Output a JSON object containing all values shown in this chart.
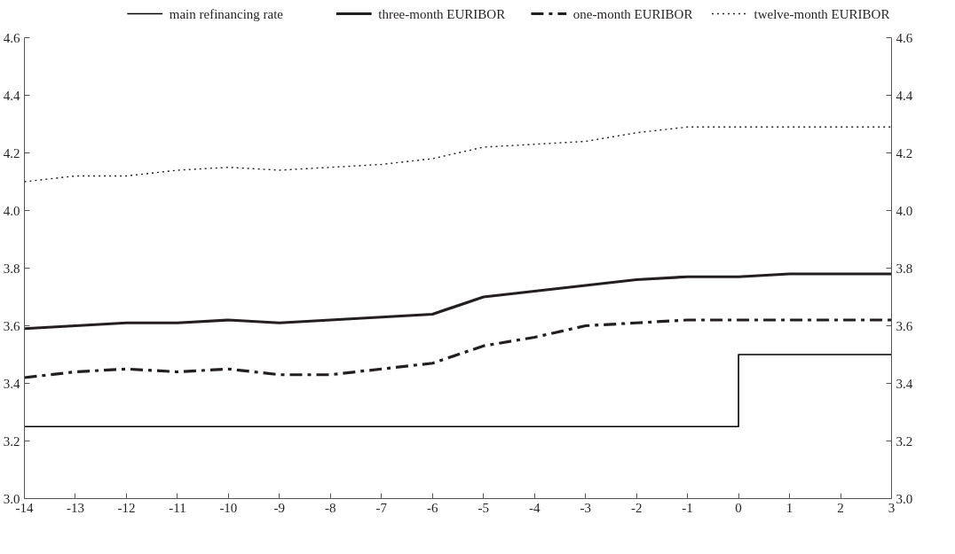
{
  "chart_data": {
    "type": "line",
    "x": [
      -14,
      -13,
      -12,
      -11,
      -10,
      -9,
      -8,
      -7,
      -6,
      -5,
      -4,
      -3,
      -2,
      -1,
      0,
      1,
      2,
      3
    ],
    "series": [
      {
        "name": "main refinancing rate",
        "type": "step",
        "color": "#000000",
        "line_style": "solid",
        "x": [
          -14,
          0,
          3
        ],
        "values": [
          3.25,
          3.5,
          3.5
        ]
      },
      {
        "name": "three-month EURIBOR",
        "color": "#231f20",
        "line_style": "solid",
        "values": [
          3.59,
          3.6,
          3.61,
          3.61,
          3.62,
          3.61,
          3.62,
          3.63,
          3.64,
          3.7,
          3.72,
          3.74,
          3.76,
          3.77,
          3.77,
          3.78,
          3.78,
          3.78
        ]
      },
      {
        "name": "one-month EURIBOR",
        "color": "#231f20",
        "line_style": "dashdot",
        "values": [
          3.42,
          3.44,
          3.45,
          3.44,
          3.45,
          3.43,
          3.43,
          3.45,
          3.47,
          3.53,
          3.56,
          3.6,
          3.61,
          3.62,
          3.62,
          3.62,
          3.62,
          3.62
        ]
      },
      {
        "name": "twelve-month EURIBOR",
        "color": "#231f20",
        "line_style": "dotted",
        "values": [
          4.1,
          4.12,
          4.12,
          4.14,
          4.15,
          4.14,
          4.15,
          4.16,
          4.18,
          4.22,
          4.23,
          4.24,
          4.27,
          4.29,
          4.29,
          4.29,
          4.29,
          4.29
        ]
      }
    ],
    "xlim": [
      -14,
      3
    ],
    "xticks": [
      -14,
      -13,
      -12,
      -11,
      -10,
      -9,
      -8,
      -7,
      -6,
      -5,
      -4,
      -3,
      -2,
      -1,
      0,
      1,
      2,
      3
    ],
    "ylim": [
      3.0,
      4.6
    ],
    "yticks": [
      {
        "value": 3.0,
        "label": "3.0"
      },
      {
        "value": 3.2,
        "label": "3.2"
      },
      {
        "value": 3.4,
        "label": "3.4"
      },
      {
        "value": 3.6,
        "label": "3.6"
      },
      {
        "value": 3.8,
        "label": "3.8"
      },
      {
        "value": 4.0,
        "label": "4.0"
      },
      {
        "value": 4.2,
        "label": "4.2"
      },
      {
        "value": 4.4,
        "label": "4.4"
      },
      {
        "value": 4.6,
        "label": "4.6"
      }
    ],
    "y2lim": [
      3.0,
      4.6
    ],
    "y2ticks": [
      {
        "value": 3.0,
        "label": "3.0"
      },
      {
        "value": 3.2,
        "label": "3.2"
      },
      {
        "value": 3.4,
        "label": "3.4"
      },
      {
        "value": 3.6,
        "label": "3.6"
      },
      {
        "value": 3.8,
        "label": "3.8"
      },
      {
        "value": 4.0,
        "label": "4.0"
      },
      {
        "value": 4.2,
        "label": "4.2"
      },
      {
        "value": 4.4,
        "label": "4.4"
      },
      {
        "value": 4.6,
        "label": "4.6"
      }
    ],
    "grid": false,
    "legend": "top",
    "marker": "none"
  }
}
